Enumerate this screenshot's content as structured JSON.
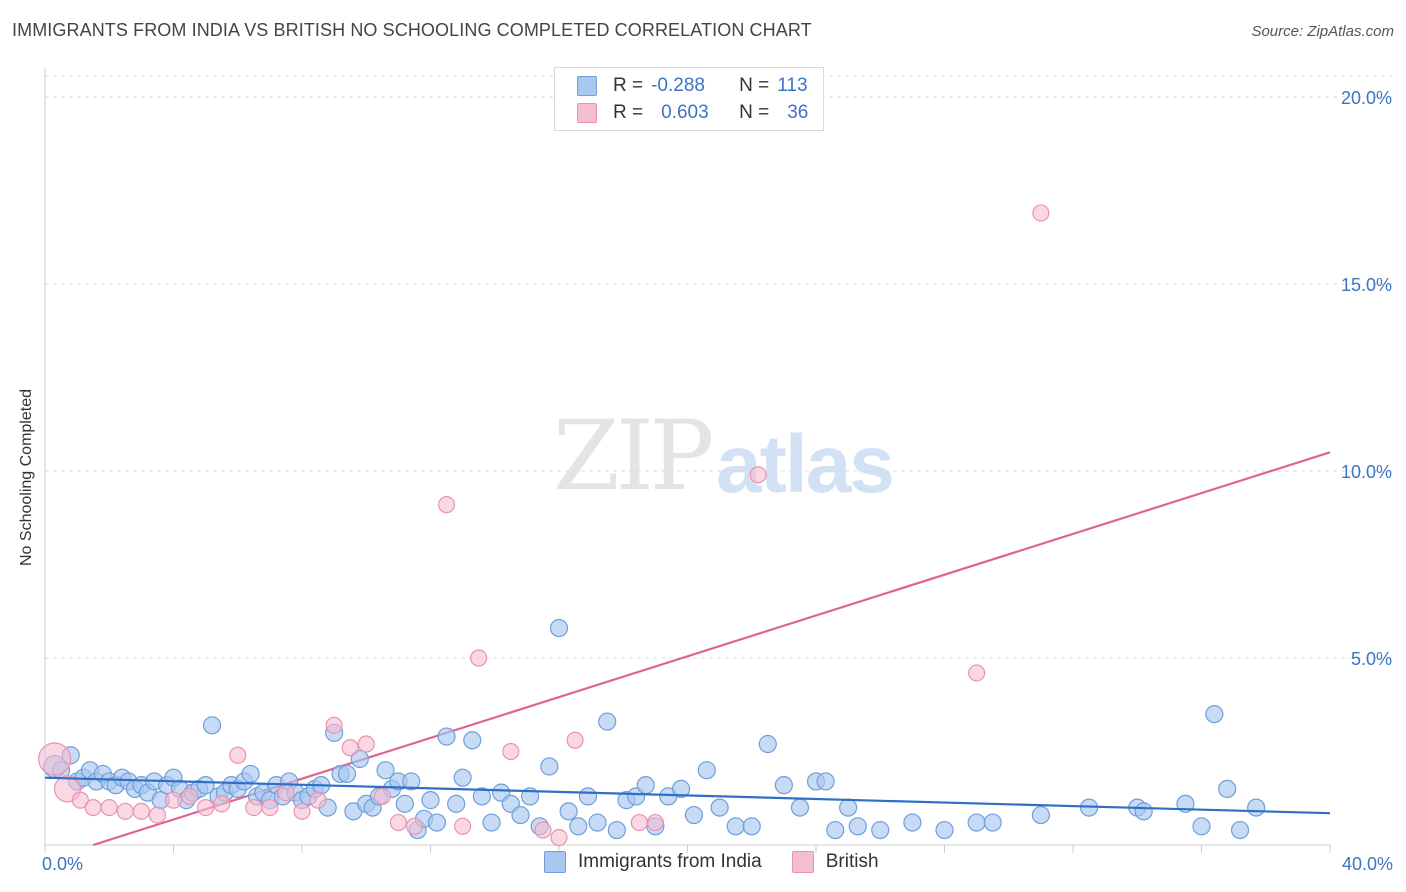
{
  "title": "IMMIGRANTS FROM INDIA VS BRITISH NO SCHOOLING COMPLETED CORRELATION CHART",
  "source": "Source: ZipAtlas.com",
  "watermark": {
    "zip": "ZIP",
    "atlas": "atlas"
  },
  "colors": {
    "blue_fill": "#a9c8ef",
    "blue_stroke": "#6f9fdb",
    "blue_line": "#2f6fc4",
    "pink_fill": "#f5bdd0",
    "pink_stroke": "#e993b0",
    "pink_line": "#e0648e",
    "tick_text": "#3d74c4",
    "grid": "#dcdcdc"
  },
  "legend": {
    "rows": [
      {
        "r_label": "R =",
        "r_value": "-0.288",
        "n_label": "N =",
        "n_value": "113"
      },
      {
        "r_label": "R =",
        "r_value": "0.603",
        "n_label": "N =",
        "n_value": "36"
      }
    ]
  },
  "bottom_legend": {
    "india": "Immigrants from India",
    "british": "British"
  },
  "chart_data": {
    "type": "scatter",
    "title": "IMMIGRANTS FROM INDIA VS BRITISH NO SCHOOLING COMPLETED CORRELATION CHART",
    "xlabel": "",
    "ylabel": "No Schooling Completed",
    "xlim": [
      0,
      40
    ],
    "ylim": [
      0,
      21
    ],
    "x_tick_labels": {
      "left": "0.0%",
      "right": "40.0%"
    },
    "y_ticks": [
      {
        "value": 5,
        "label": "5.0%"
      },
      {
        "value": 10,
        "label": "10.0%"
      },
      {
        "value": 15,
        "label": "15.0%"
      },
      {
        "value": 20,
        "label": "20.0%"
      }
    ],
    "series": [
      {
        "name": "Immigrants from India",
        "trend": {
          "x": [
            0,
            40
          ],
          "y": [
            1.8,
            0.85
          ]
        },
        "points": [
          [
            0.3,
            2.1
          ],
          [
            0.5,
            2.0
          ],
          [
            0.8,
            2.4
          ],
          [
            1.0,
            1.7
          ],
          [
            1.2,
            1.8
          ],
          [
            1.4,
            2.0
          ],
          [
            1.6,
            1.7
          ],
          [
            1.8,
            1.9
          ],
          [
            2.0,
            1.7
          ],
          [
            2.2,
            1.6
          ],
          [
            2.4,
            1.8
          ],
          [
            2.6,
            1.7
          ],
          [
            2.8,
            1.5
          ],
          [
            3.0,
            1.6
          ],
          [
            3.2,
            1.4
          ],
          [
            3.4,
            1.7
          ],
          [
            3.6,
            1.2
          ],
          [
            3.8,
            1.6
          ],
          [
            4.0,
            1.8
          ],
          [
            4.2,
            1.5
          ],
          [
            4.4,
            1.2
          ],
          [
            4.6,
            1.4
          ],
          [
            4.8,
            1.5
          ],
          [
            5.0,
            1.6
          ],
          [
            5.2,
            3.2
          ],
          [
            5.4,
            1.3
          ],
          [
            5.6,
            1.4
          ],
          [
            5.8,
            1.6
          ],
          [
            6.0,
            1.5
          ],
          [
            6.2,
            1.7
          ],
          [
            6.4,
            1.9
          ],
          [
            6.6,
            1.3
          ],
          [
            6.8,
            1.4
          ],
          [
            7.0,
            1.2
          ],
          [
            7.2,
            1.6
          ],
          [
            7.4,
            1.3
          ],
          [
            7.6,
            1.7
          ],
          [
            7.8,
            1.4
          ],
          [
            8.0,
            1.2
          ],
          [
            8.2,
            1.3
          ],
          [
            8.4,
            1.5
          ],
          [
            8.6,
            1.6
          ],
          [
            8.8,
            1.0
          ],
          [
            9.0,
            3.0
          ],
          [
            9.2,
            1.9
          ],
          [
            9.4,
            1.9
          ],
          [
            9.6,
            0.9
          ],
          [
            9.8,
            2.3
          ],
          [
            10.0,
            1.1
          ],
          [
            10.2,
            1.0
          ],
          [
            10.4,
            1.3
          ],
          [
            10.6,
            2.0
          ],
          [
            10.8,
            1.5
          ],
          [
            11.0,
            1.7
          ],
          [
            11.2,
            1.1
          ],
          [
            11.4,
            1.7
          ],
          [
            11.6,
            0.4
          ],
          [
            11.8,
            0.7
          ],
          [
            12.0,
            1.2
          ],
          [
            12.2,
            0.6
          ],
          [
            12.5,
            2.9
          ],
          [
            12.8,
            1.1
          ],
          [
            13.0,
            1.8
          ],
          [
            13.3,
            2.8
          ],
          [
            13.6,
            1.3
          ],
          [
            13.9,
            0.6
          ],
          [
            14.2,
            1.4
          ],
          [
            14.5,
            1.1
          ],
          [
            14.8,
            0.8
          ],
          [
            15.1,
            1.3
          ],
          [
            15.4,
            0.5
          ],
          [
            15.7,
            2.1
          ],
          [
            16.0,
            5.8
          ],
          [
            16.3,
            0.9
          ],
          [
            16.6,
            0.5
          ],
          [
            16.9,
            1.3
          ],
          [
            17.2,
            0.6
          ],
          [
            17.5,
            3.3
          ],
          [
            17.8,
            0.4
          ],
          [
            18.1,
            1.2
          ],
          [
            18.4,
            1.3
          ],
          [
            18.7,
            1.6
          ],
          [
            19.0,
            0.5
          ],
          [
            19.4,
            1.3
          ],
          [
            19.8,
            1.5
          ],
          [
            20.2,
            0.8
          ],
          [
            20.6,
            2.0
          ],
          [
            21.0,
            1.0
          ],
          [
            21.5,
            0.5
          ],
          [
            22.0,
            0.5
          ],
          [
            22.5,
            2.7
          ],
          [
            23.0,
            1.6
          ],
          [
            23.5,
            1.0
          ],
          [
            24.0,
            1.7
          ],
          [
            24.3,
            1.7
          ],
          [
            24.6,
            0.4
          ],
          [
            25.0,
            1.0
          ],
          [
            25.3,
            0.5
          ],
          [
            26.0,
            0.4
          ],
          [
            27.0,
            0.6
          ],
          [
            28.0,
            0.4
          ],
          [
            29.0,
            0.6
          ],
          [
            29.5,
            0.6
          ],
          [
            31.0,
            0.8
          ],
          [
            32.5,
            1.0
          ],
          [
            34.0,
            1.0
          ],
          [
            35.5,
            1.1
          ],
          [
            36.0,
            0.5
          ],
          [
            36.4,
            3.5
          ],
          [
            36.8,
            1.5
          ],
          [
            37.2,
            0.4
          ],
          [
            37.7,
            1.0
          ],
          [
            34.2,
            0.9
          ]
        ]
      },
      {
        "name": "British",
        "trend": {
          "x": [
            1.5,
            40
          ],
          "y": [
            0.0,
            10.5
          ]
        },
        "points": [
          [
            0.3,
            2.3
          ],
          [
            0.7,
            1.5
          ],
          [
            1.1,
            1.2
          ],
          [
            1.5,
            1.0
          ],
          [
            2.0,
            1.0
          ],
          [
            2.5,
            0.9
          ],
          [
            3.0,
            0.9
          ],
          [
            3.5,
            0.8
          ],
          [
            4.0,
            1.2
          ],
          [
            4.5,
            1.3
          ],
          [
            5.0,
            1.0
          ],
          [
            5.5,
            1.1
          ],
          [
            6.0,
            2.4
          ],
          [
            6.5,
            1.0
          ],
          [
            7.0,
            1.0
          ],
          [
            7.5,
            1.4
          ],
          [
            8.0,
            0.9
          ],
          [
            8.5,
            1.2
          ],
          [
            9.0,
            3.2
          ],
          [
            9.5,
            2.6
          ],
          [
            10.0,
            2.7
          ],
          [
            10.5,
            1.3
          ],
          [
            11.0,
            0.6
          ],
          [
            11.5,
            0.5
          ],
          [
            12.5,
            9.1
          ],
          [
            13.0,
            0.5
          ],
          [
            13.5,
            5.0
          ],
          [
            14.5,
            2.5
          ],
          [
            15.5,
            0.4
          ],
          [
            16.0,
            0.2
          ],
          [
            16.5,
            2.8
          ],
          [
            18.5,
            0.6
          ],
          [
            19.0,
            0.6
          ],
          [
            22.2,
            9.9
          ],
          [
            29.0,
            4.6
          ],
          [
            31.0,
            16.9
          ]
        ]
      }
    ]
  }
}
